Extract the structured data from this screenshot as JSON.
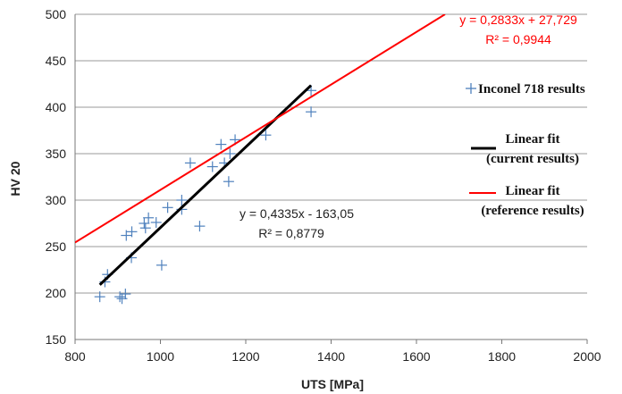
{
  "chart_data": {
    "type": "scatter",
    "xlabel": "UTS [MPa]",
    "ylabel": "HV 20",
    "xlim": [
      800,
      2000
    ],
    "ylim": [
      150,
      500
    ],
    "x_ticks": [
      800,
      1000,
      1200,
      1400,
      1600,
      1800,
      2000
    ],
    "y_ticks": [
      150,
      200,
      250,
      300,
      350,
      400,
      450,
      500
    ],
    "grid": "horizontal",
    "series": [
      {
        "name": "Inconel 718  results",
        "kind": "scatter",
        "marker": "plus",
        "color": "#4f81bd",
        "points": [
          [
            858,
            196
          ],
          [
            870,
            212
          ],
          [
            876,
            220
          ],
          [
            905,
            196
          ],
          [
            910,
            194
          ],
          [
            918,
            199
          ],
          [
            920,
            262
          ],
          [
            933,
            266
          ],
          [
            932,
            238
          ],
          [
            965,
            270
          ],
          [
            962,
            275
          ],
          [
            972,
            281
          ],
          [
            990,
            276
          ],
          [
            1003,
            230
          ],
          [
            1017,
            292
          ],
          [
            1050,
            300
          ],
          [
            1050,
            290
          ],
          [
            1070,
            340
          ],
          [
            1092,
            272
          ],
          [
            1122,
            336
          ],
          [
            1142,
            360
          ],
          [
            1150,
            340
          ],
          [
            1160,
            320
          ],
          [
            1163,
            350
          ],
          [
            1175,
            365
          ],
          [
            1247,
            370
          ],
          [
            1353,
            418
          ],
          [
            1353,
            395
          ]
        ]
      },
      {
        "name": "Linear fit\n(current results)",
        "kind": "line",
        "color": "#000000",
        "equation": "y = 0,4335x - 163,05",
        "r2": "R² = 0,8779",
        "slope": 0.4335,
        "intercept": -163.05,
        "x_range": [
          858,
          1353
        ]
      },
      {
        "name": "Linear fit\n(reference results)",
        "kind": "line",
        "color": "#ff0000",
        "equation": "y = 0,2833x + 27,729",
        "r2": "R² = 0,9944",
        "slope": 0.2833,
        "intercept": 27.729,
        "x_range": [
          800,
          1667
        ]
      }
    ],
    "legend": {
      "placement": "right",
      "entries": [
        {
          "line1": "Inconel 718  results",
          "line2": ""
        },
        {
          "line1": "Linear fit",
          "line2": "(current results)"
        },
        {
          "line1": "Linear fit",
          "line2": "(reference results)"
        }
      ]
    }
  }
}
